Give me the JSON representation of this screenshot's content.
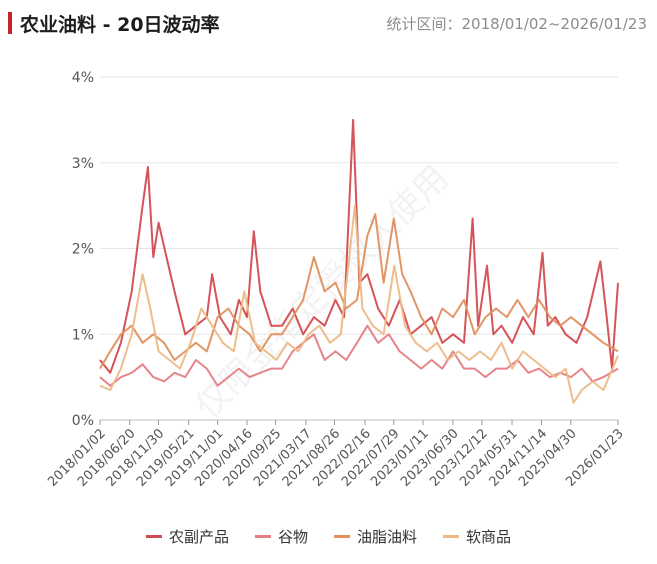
{
  "header": {
    "title": "农业油料 - 20日波动率",
    "range": "统计区间：2018/01/02~2026/01/23"
  },
  "watermark": "仅限金指定授权人使用",
  "chart_data": {
    "type": "line",
    "title": "农业油料 - 20日波动率",
    "ylim": [
      0,
      4
    ],
    "y_ticks": [
      "0%",
      "1%",
      "2%",
      "3%",
      "4%"
    ],
    "y_unit": "%",
    "x_range": [
      "2018/01/02",
      "2026/01/23"
    ],
    "x_tick_labels": [
      "2018/01/02",
      "2018/06/20",
      "2018/11/30",
      "2019/05/21",
      "2019/11/01",
      "2020/04/16",
      "2020/09/25",
      "2021/03/17",
      "2021/08/26",
      "2022/02/16",
      "2022/07/29",
      "2023/01/11",
      "2023/06/30",
      "2023/12/12",
      "2024/05/31",
      "2024/11/14",
      "2025/04/30",
      "2026/01/23"
    ],
    "x_tick_dates": [
      "2018-01-02",
      "2018-06-20",
      "2018-11-30",
      "2019-05-21",
      "2019-11-01",
      "2020-04-16",
      "2020-09-25",
      "2021-03-17",
      "2021-08-26",
      "2022-02-16",
      "2022-07-29",
      "2023-01-11",
      "2023-06-30",
      "2023-12-12",
      "2024-05-31",
      "2024-11-14",
      "2025-04-30",
      "2026-01-23"
    ],
    "grid": "horizontal",
    "legend_position": "bottom",
    "series": [
      {
        "name": "农副产品",
        "color": "#d24b4e",
        "points": [
          [
            "2018-01-02",
            0.7
          ],
          [
            "2018-03-01",
            0.55
          ],
          [
            "2018-05-01",
            0.9
          ],
          [
            "2018-07-01",
            1.5
          ],
          [
            "2018-09-01",
            2.5
          ],
          [
            "2018-10-01",
            2.95
          ],
          [
            "2018-11-01",
            1.9
          ],
          [
            "2018-12-01",
            2.3
          ],
          [
            "2019-01-15",
            1.9
          ],
          [
            "2019-03-01",
            1.5
          ],
          [
            "2019-05-01",
            1.0
          ],
          [
            "2019-07-01",
            1.1
          ],
          [
            "2019-09-01",
            1.2
          ],
          [
            "2019-10-01",
            1.7
          ],
          [
            "2019-11-15",
            1.2
          ],
          [
            "2020-01-15",
            1.0
          ],
          [
            "2020-03-01",
            1.4
          ],
          [
            "2020-04-16",
            1.2
          ],
          [
            "2020-05-25",
            2.2
          ],
          [
            "2020-07-01",
            1.5
          ],
          [
            "2020-09-01",
            1.1
          ],
          [
            "2020-11-01",
            1.1
          ],
          [
            "2021-01-01",
            1.3
          ],
          [
            "2021-03-01",
            1.0
          ],
          [
            "2021-05-01",
            1.2
          ],
          [
            "2021-07-01",
            1.1
          ],
          [
            "2021-09-01",
            1.4
          ],
          [
            "2021-10-20",
            1.2
          ],
          [
            "2021-12-10",
            3.5
          ],
          [
            "2022-01-15",
            1.6
          ],
          [
            "2022-03-01",
            1.7
          ],
          [
            "2022-05-01",
            1.3
          ],
          [
            "2022-07-01",
            1.1
          ],
          [
            "2022-09-01",
            1.4
          ],
          [
            "2022-11-01",
            1.0
          ],
          [
            "2023-01-01",
            1.1
          ],
          [
            "2023-03-01",
            1.2
          ],
          [
            "2023-05-01",
            0.9
          ],
          [
            "2023-07-01",
            1.0
          ],
          [
            "2023-09-01",
            0.9
          ],
          [
            "2023-10-20",
            2.35
          ],
          [
            "2023-11-20",
            1.1
          ],
          [
            "2024-01-10",
            1.8
          ],
          [
            "2024-02-15",
            1.0
          ],
          [
            "2024-04-01",
            1.1
          ],
          [
            "2024-06-01",
            0.9
          ],
          [
            "2024-08-01",
            1.2
          ],
          [
            "2024-10-01",
            1.0
          ],
          [
            "2024-11-20",
            1.95
          ],
          [
            "2024-12-20",
            1.1
          ],
          [
            "2025-02-01",
            1.2
          ],
          [
            "2025-04-01",
            1.0
          ],
          [
            "2025-06-01",
            0.9
          ],
          [
            "2025-08-01",
            1.2
          ],
          [
            "2025-10-15",
            1.85
          ],
          [
            "2025-11-20",
            1.2
          ],
          [
            "2025-12-20",
            0.6
          ],
          [
            "2026-01-23",
            1.6
          ]
        ]
      },
      {
        "name": "谷物",
        "color": "#e57d84",
        "points": [
          [
            "2018-01-02",
            0.5
          ],
          [
            "2018-03-01",
            0.4
          ],
          [
            "2018-05-01",
            0.5
          ],
          [
            "2018-07-01",
            0.55
          ],
          [
            "2018-09-01",
            0.65
          ],
          [
            "2018-11-01",
            0.5
          ],
          [
            "2019-01-01",
            0.45
          ],
          [
            "2019-03-01",
            0.55
          ],
          [
            "2019-05-01",
            0.5
          ],
          [
            "2019-07-01",
            0.7
          ],
          [
            "2019-09-01",
            0.6
          ],
          [
            "2019-11-01",
            0.4
          ],
          [
            "2020-01-01",
            0.5
          ],
          [
            "2020-03-01",
            0.6
          ],
          [
            "2020-05-01",
            0.5
          ],
          [
            "2020-07-01",
            0.55
          ],
          [
            "2020-09-01",
            0.6
          ],
          [
            "2020-11-01",
            0.6
          ],
          [
            "2021-01-01",
            0.8
          ],
          [
            "2021-03-01",
            0.9
          ],
          [
            "2021-05-01",
            1.0
          ],
          [
            "2021-07-01",
            0.7
          ],
          [
            "2021-09-01",
            0.8
          ],
          [
            "2021-11-01",
            0.7
          ],
          [
            "2022-01-01",
            0.9
          ],
          [
            "2022-03-01",
            1.1
          ],
          [
            "2022-05-01",
            0.9
          ],
          [
            "2022-07-01",
            1.0
          ],
          [
            "2022-09-01",
            0.8
          ],
          [
            "2022-11-01",
            0.7
          ],
          [
            "2023-01-01",
            0.6
          ],
          [
            "2023-03-01",
            0.7
          ],
          [
            "2023-05-01",
            0.6
          ],
          [
            "2023-07-01",
            0.8
          ],
          [
            "2023-09-01",
            0.6
          ],
          [
            "2023-11-01",
            0.6
          ],
          [
            "2024-01-01",
            0.5
          ],
          [
            "2024-03-01",
            0.6
          ],
          [
            "2024-05-01",
            0.6
          ],
          [
            "2024-07-01",
            0.7
          ],
          [
            "2024-09-01",
            0.55
          ],
          [
            "2024-11-01",
            0.6
          ],
          [
            "2025-01-01",
            0.5
          ],
          [
            "2025-03-01",
            0.55
          ],
          [
            "2025-05-01",
            0.5
          ],
          [
            "2025-07-01",
            0.6
          ],
          [
            "2025-09-01",
            0.45
          ],
          [
            "2025-11-01",
            0.5
          ],
          [
            "2026-01-23",
            0.6
          ]
        ]
      },
      {
        "name": "油脂油料",
        "color": "#e08f5d",
        "points": [
          [
            "2018-01-02",
            0.6
          ],
          [
            "2018-03-01",
            0.8
          ],
          [
            "2018-05-01",
            1.0
          ],
          [
            "2018-07-01",
            1.1
          ],
          [
            "2018-09-01",
            0.9
          ],
          [
            "2018-11-01",
            1.0
          ],
          [
            "2019-01-01",
            0.9
          ],
          [
            "2019-03-01",
            0.7
          ],
          [
            "2019-05-01",
            0.8
          ],
          [
            "2019-07-01",
            0.9
          ],
          [
            "2019-09-01",
            0.8
          ],
          [
            "2019-11-01",
            1.2
          ],
          [
            "2020-01-01",
            1.3
          ],
          [
            "2020-03-01",
            1.1
          ],
          [
            "2020-05-01",
            1.0
          ],
          [
            "2020-07-01",
            0.8
          ],
          [
            "2020-09-01",
            1.0
          ],
          [
            "2020-11-01",
            1.0
          ],
          [
            "2021-01-01",
            1.2
          ],
          [
            "2021-03-01",
            1.4
          ],
          [
            "2021-05-01",
            1.9
          ],
          [
            "2021-07-01",
            1.5
          ],
          [
            "2021-09-01",
            1.6
          ],
          [
            "2021-11-01",
            1.3
          ],
          [
            "2022-01-01",
            1.4
          ],
          [
            "2022-03-01",
            2.15
          ],
          [
            "2022-04-15",
            2.4
          ],
          [
            "2022-06-01",
            1.6
          ],
          [
            "2022-07-29",
            2.35
          ],
          [
            "2022-09-15",
            1.7
          ],
          [
            "2022-11-01",
            1.5
          ],
          [
            "2023-01-01",
            1.2
          ],
          [
            "2023-03-01",
            1.0
          ],
          [
            "2023-05-01",
            1.3
          ],
          [
            "2023-07-01",
            1.2
          ],
          [
            "2023-09-01",
            1.4
          ],
          [
            "2023-11-01",
            1.0
          ],
          [
            "2024-01-01",
            1.2
          ],
          [
            "2024-03-01",
            1.3
          ],
          [
            "2024-05-01",
            1.2
          ],
          [
            "2024-07-01",
            1.4
          ],
          [
            "2024-09-01",
            1.2
          ],
          [
            "2024-11-01",
            1.4
          ],
          [
            "2025-01-01",
            1.2
          ],
          [
            "2025-03-01",
            1.1
          ],
          [
            "2025-05-01",
            1.2
          ],
          [
            "2025-07-01",
            1.1
          ],
          [
            "2025-09-01",
            1.0
          ],
          [
            "2025-11-01",
            0.9
          ],
          [
            "2026-01-23",
            0.8
          ]
        ]
      },
      {
        "name": "软商品",
        "color": "#ecba86",
        "points": [
          [
            "2018-01-02",
            0.4
          ],
          [
            "2018-03-01",
            0.35
          ],
          [
            "2018-05-01",
            0.6
          ],
          [
            "2018-07-01",
            1.0
          ],
          [
            "2018-09-01",
            1.7
          ],
          [
            "2018-10-15",
            1.3
          ],
          [
            "2018-12-01",
            0.8
          ],
          [
            "2019-02-01",
            0.7
          ],
          [
            "2019-04-01",
            0.6
          ],
          [
            "2019-06-01",
            0.9
          ],
          [
            "2019-08-01",
            1.3
          ],
          [
            "2019-10-01",
            1.1
          ],
          [
            "2019-12-01",
            0.9
          ],
          [
            "2020-02-01",
            0.8
          ],
          [
            "2020-04-01",
            1.5
          ],
          [
            "2020-06-01",
            0.9
          ],
          [
            "2020-08-01",
            0.8
          ],
          [
            "2020-10-01",
            0.7
          ],
          [
            "2020-12-01",
            0.9
          ],
          [
            "2021-02-01",
            0.8
          ],
          [
            "2021-04-01",
            1.0
          ],
          [
            "2021-06-01",
            1.1
          ],
          [
            "2021-08-01",
            0.9
          ],
          [
            "2021-10-01",
            1.0
          ],
          [
            "2021-12-20",
            2.5
          ],
          [
            "2022-02-01",
            1.3
          ],
          [
            "2022-04-01",
            1.1
          ],
          [
            "2022-06-01",
            1.0
          ],
          [
            "2022-08-01",
            1.8
          ],
          [
            "2022-10-01",
            1.1
          ],
          [
            "2022-12-01",
            0.9
          ],
          [
            "2023-02-01",
            0.8
          ],
          [
            "2023-04-01",
            0.9
          ],
          [
            "2023-06-01",
            0.7
          ],
          [
            "2023-08-01",
            0.8
          ],
          [
            "2023-10-01",
            0.7
          ],
          [
            "2023-12-01",
            0.8
          ],
          [
            "2024-02-01",
            0.7
          ],
          [
            "2024-04-01",
            0.9
          ],
          [
            "2024-06-01",
            0.6
          ],
          [
            "2024-08-01",
            0.8
          ],
          [
            "2024-10-01",
            0.7
          ],
          [
            "2024-12-01",
            0.6
          ],
          [
            "2025-02-01",
            0.5
          ],
          [
            "2025-04-01",
            0.6
          ],
          [
            "2025-05-15",
            0.2
          ],
          [
            "2025-07-01",
            0.35
          ],
          [
            "2025-09-01",
            0.45
          ],
          [
            "2025-11-01",
            0.35
          ],
          [
            "2026-01-23",
            0.75
          ]
        ]
      }
    ]
  }
}
